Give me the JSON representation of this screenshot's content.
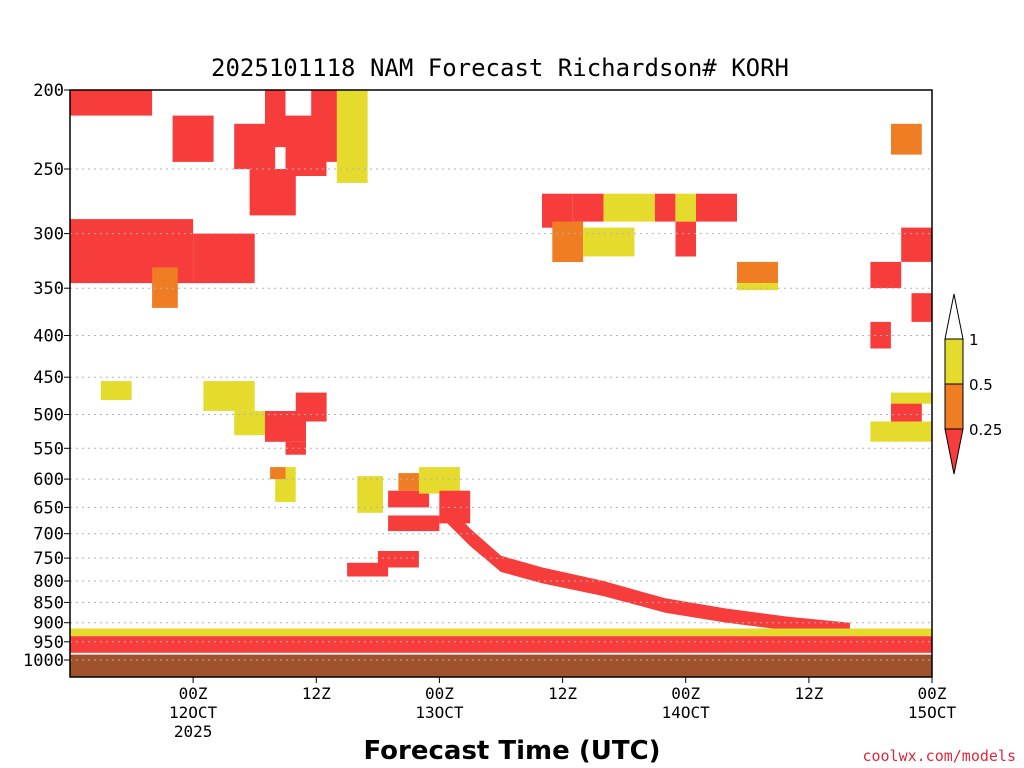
{
  "chart_data": {
    "type": "heatmap",
    "title": "2025101118 NAM Forecast Richardson# KORH",
    "xlabel": "Forecast Time (UTC)",
    "ylabel": "",
    "credit": "coolwx.com/models",
    "y_axis": {
      "units": "hPa",
      "scale": "log-pressure",
      "ylim": [
        1000,
        200
      ],
      "ticks": [
        "200",
        "250",
        "300",
        "350",
        "400",
        "450",
        "500",
        "550",
        "600",
        "650",
        "700",
        "750",
        "800",
        "850",
        "900",
        "950",
        "1000"
      ]
    },
    "x_axis": {
      "units": "forecast hour",
      "xlim": [
        -6,
        78
      ],
      "ticks": [
        {
          "hour": 6,
          "lines": [
            "00Z",
            "12OCT",
            "2025"
          ]
        },
        {
          "hour": 18,
          "lines": [
            "12Z"
          ]
        },
        {
          "hour": 30,
          "lines": [
            "00Z",
            "13OCT"
          ]
        },
        {
          "hour": 42,
          "lines": [
            "12Z"
          ]
        },
        {
          "hour": 54,
          "lines": [
            "00Z",
            "14OCT"
          ]
        },
        {
          "hour": 66,
          "lines": [
            "12Z"
          ]
        },
        {
          "hour": 78,
          "lines": [
            "00Z",
            "15OCT"
          ]
        }
      ]
    },
    "legend": {
      "placement": "right",
      "bins": [
        {
          "label": "0.25",
          "color": "#f73c3c"
        },
        {
          "label": "0.5",
          "color": "#ee7d24"
        },
        {
          "label": "1",
          "color": "#e4db2c"
        }
      ],
      "over_color": "#ffffff",
      "under_color": "#f73c3c"
    },
    "colors": {
      "ri_lt_0_25": "#f73c3c",
      "ri_0_25_0_5": "#ee7d24",
      "ri_0_5_1": "#e4db2c",
      "below_ground": "#a0522d",
      "gridline": "#b3b3b3"
    },
    "regions": [
      {
        "cat": "red",
        "t0": -6,
        "t1": 2,
        "p0": 200,
        "p1": 215
      },
      {
        "cat": "red",
        "t0": -6,
        "t1": 6,
        "p0": 288,
        "p1": 345
      },
      {
        "cat": "red",
        "t0": 6,
        "t1": 12,
        "p0": 300,
        "p1": 345
      },
      {
        "cat": "red",
        "t0": 4,
        "t1": 8,
        "p0": 215,
        "p1": 245
      },
      {
        "cat": "red",
        "t0": 10,
        "t1": 14,
        "p0": 220,
        "p1": 250
      },
      {
        "cat": "red",
        "t0": 13,
        "t1": 15,
        "p0": 200,
        "p1": 235
      },
      {
        "cat": "red",
        "t0": 15,
        "t1": 19,
        "p0": 215,
        "p1": 255
      },
      {
        "cat": "red",
        "t0": 17.5,
        "t1": 21,
        "p0": 200,
        "p1": 245
      },
      {
        "cat": "yellow",
        "t0": 20,
        "t1": 23,
        "p0": 200,
        "p1": 260
      },
      {
        "cat": "red",
        "t0": 11.5,
        "t1": 16,
        "p0": 250,
        "p1": 285
      },
      {
        "cat": "orange",
        "t0": 2,
        "t1": 4.5,
        "p0": 330,
        "p1": 370
      },
      {
        "cat": "yellow",
        "t0": -3,
        "t1": 0,
        "p0": 455,
        "p1": 480
      },
      {
        "cat": "yellow",
        "t0": 7,
        "t1": 12,
        "p0": 455,
        "p1": 495
      },
      {
        "cat": "yellow",
        "t0": 10,
        "t1": 13,
        "p0": 495,
        "p1": 530
      },
      {
        "cat": "red",
        "t0": 13,
        "t1": 17,
        "p0": 495,
        "p1": 540
      },
      {
        "cat": "red",
        "t0": 15,
        "t1": 17,
        "p0": 540,
        "p1": 560
      },
      {
        "cat": "red",
        "t0": 16,
        "t1": 19,
        "p0": 470,
        "p1": 510
      },
      {
        "cat": "yellow",
        "t0": 14,
        "t1": 16,
        "p0": 580,
        "p1": 640
      },
      {
        "cat": "orange",
        "t0": 13.5,
        "t1": 15,
        "p0": 580,
        "p1": 600
      },
      {
        "cat": "yellow",
        "t0": 22,
        "t1": 24.5,
        "p0": 595,
        "p1": 660
      },
      {
        "cat": "red",
        "t0": 25,
        "t1": 29,
        "p0": 620,
        "p1": 650
      },
      {
        "cat": "red",
        "t0": 25,
        "t1": 30,
        "p0": 665,
        "p1": 695
      },
      {
        "cat": "orange",
        "t0": 26,
        "t1": 30,
        "p0": 590,
        "p1": 620
      },
      {
        "cat": "yellow",
        "t0": 28,
        "t1": 32,
        "p0": 580,
        "p1": 625
      },
      {
        "cat": "red",
        "t0": 30,
        "t1": 33,
        "p0": 620,
        "p1": 680
      },
      {
        "cat": "red",
        "t0": 24,
        "t1": 28,
        "p0": 735,
        "p1": 770
      },
      {
        "cat": "red",
        "t0": 21,
        "t1": 25,
        "p0": 760,
        "p1": 790
      },
      {
        "cat": "red",
        "t0": 40,
        "t1": 43,
        "p0": 268,
        "p1": 295
      },
      {
        "cat": "orange",
        "t0": 41,
        "t1": 44,
        "p0": 290,
        "p1": 325
      },
      {
        "cat": "red",
        "t0": 43,
        "t1": 46,
        "p0": 268,
        "p1": 290
      },
      {
        "cat": "yellow",
        "t0": 46,
        "t1": 51,
        "p0": 268,
        "p1": 290
      },
      {
        "cat": "yellow",
        "t0": 44,
        "t1": 49,
        "p0": 295,
        "p1": 320
      },
      {
        "cat": "red",
        "t0": 51,
        "t1": 53,
        "p0": 268,
        "p1": 290
      },
      {
        "cat": "yellow",
        "t0": 53,
        "t1": 55,
        "p0": 268,
        "p1": 290
      },
      {
        "cat": "red",
        "t0": 55,
        "t1": 59,
        "p0": 268,
        "p1": 290
      },
      {
        "cat": "red",
        "t0": 53,
        "t1": 55,
        "p0": 290,
        "p1": 320
      },
      {
        "cat": "orange",
        "t0": 59,
        "t1": 63,
        "p0": 325,
        "p1": 345
      },
      {
        "cat": "yellow",
        "t0": 59,
        "t1": 63,
        "p0": 345,
        "p1": 352
      },
      {
        "cat": "orange",
        "t0": 74,
        "t1": 77,
        "p0": 220,
        "p1": 240
      },
      {
        "cat": "red",
        "t0": 75,
        "t1": 78,
        "p0": 295,
        "p1": 325
      },
      {
        "cat": "red",
        "t0": 72,
        "t1": 75,
        "p0": 325,
        "p1": 350
      },
      {
        "cat": "red",
        "t0": 76,
        "t1": 78,
        "p0": 355,
        "p1": 385
      },
      {
        "cat": "red",
        "t0": 72,
        "t1": 74,
        "p0": 385,
        "p1": 415
      },
      {
        "cat": "red",
        "t0": 74,
        "t1": 77,
        "p0": 480,
        "p1": 510
      },
      {
        "cat": "yellow",
        "t0": 72,
        "t1": 78,
        "p0": 510,
        "p1": 540
      },
      {
        "cat": "yellow",
        "t0": 74,
        "t1": 78,
        "p0": 470,
        "p1": 485
      }
    ],
    "layers": [
      {
        "name": "descending-red-band",
        "cat": "red",
        "top_p": [
          [
            30,
            630
          ],
          [
            33,
            690
          ],
          [
            36,
            745
          ],
          [
            40,
            770
          ],
          [
            46,
            800
          ],
          [
            52,
            840
          ],
          [
            58,
            865
          ],
          [
            64,
            885
          ],
          [
            70,
            900
          ]
        ],
        "thickness_hpa": 35
      },
      {
        "name": "low-level-yellow",
        "cat": "yellow",
        "t0": -6,
        "t1": 78,
        "top_p": 915,
        "bottom_p": 935
      },
      {
        "name": "low-level-red",
        "cat": "red",
        "t0": -6,
        "t1": 78,
        "top_p": 935,
        "bottom_p": 980
      },
      {
        "name": "surface",
        "cat": "below_ground",
        "t0": -6,
        "t1": 78,
        "top_p": 985,
        "bottom_p": 1050
      }
    ]
  }
}
